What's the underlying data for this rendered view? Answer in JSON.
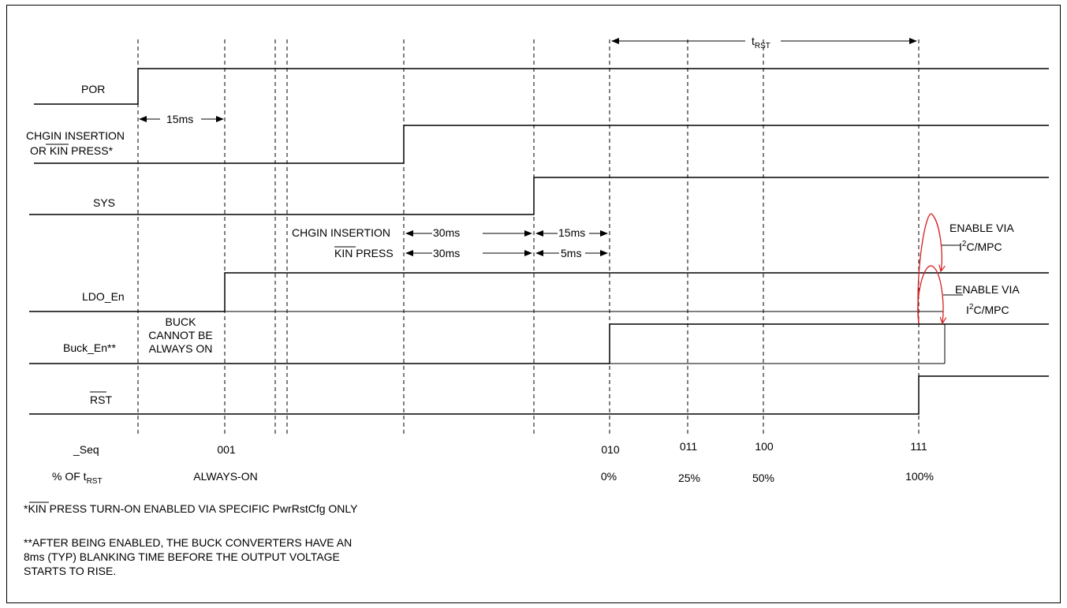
{
  "signals": {
    "por": "POR",
    "chgin_line1": "CHGIN INSERTION",
    "chgin_line2_prefix": "OR ",
    "chgin_line2_kin": "KIN",
    "chgin_line2_suffix": " PRESS*",
    "sys": "SYS",
    "ldo_en": "LDO_En",
    "buck_en": "Buck_En**",
    "rst": "RST"
  },
  "timing": {
    "trst_t": "t",
    "trst_sub": "RST",
    "t15ms_por": "15ms",
    "chgin_label": "CHGIN INSERTION",
    "kin_label_kin": "KIN",
    "kin_label_rest": " PRESS",
    "chgin_30ms": "30ms",
    "chgin_15ms": "15ms",
    "kin_30ms": "30ms",
    "kin_5ms": "5ms"
  },
  "notes": {
    "buck_line1": "BUCK",
    "buck_line2": "CANNOT BE",
    "buck_line3": "ALWAYS ON",
    "enable1_line1": "ENABLE VIA",
    "enable1_i": "I",
    "enable1_sup": "2",
    "enable1_rest": "C/MPC",
    "enable2_line1": "ENABLE VIA",
    "enable2_i": "I",
    "enable2_sup": "2",
    "enable2_rest": "C/MPC"
  },
  "sequence": {
    "row_label": "_Seq",
    "pct_label_prefix": "% OF t",
    "pct_label_sub": "RST",
    "codes": [
      "001",
      "010",
      "011",
      "100",
      "111"
    ],
    "pcts": [
      "ALWAYS-ON",
      "0%",
      "25%",
      "50%",
      "100%"
    ]
  },
  "footnotes": {
    "f1_star": "*",
    "f1_kin": "KIN",
    "f1_rest": " PRESS TURN-ON ENABLED VIA SPECIFIC PwrRstCfg ONLY",
    "f2_line1": "**AFTER BEING ENABLED, THE BUCK CONVERTERS HAVE AN",
    "f2_line2": "8ms (TYP) BLANKING TIME BEFORE THE OUTPUT VOLTAGE",
    "f2_line3": "STARTS TO RISE."
  }
}
